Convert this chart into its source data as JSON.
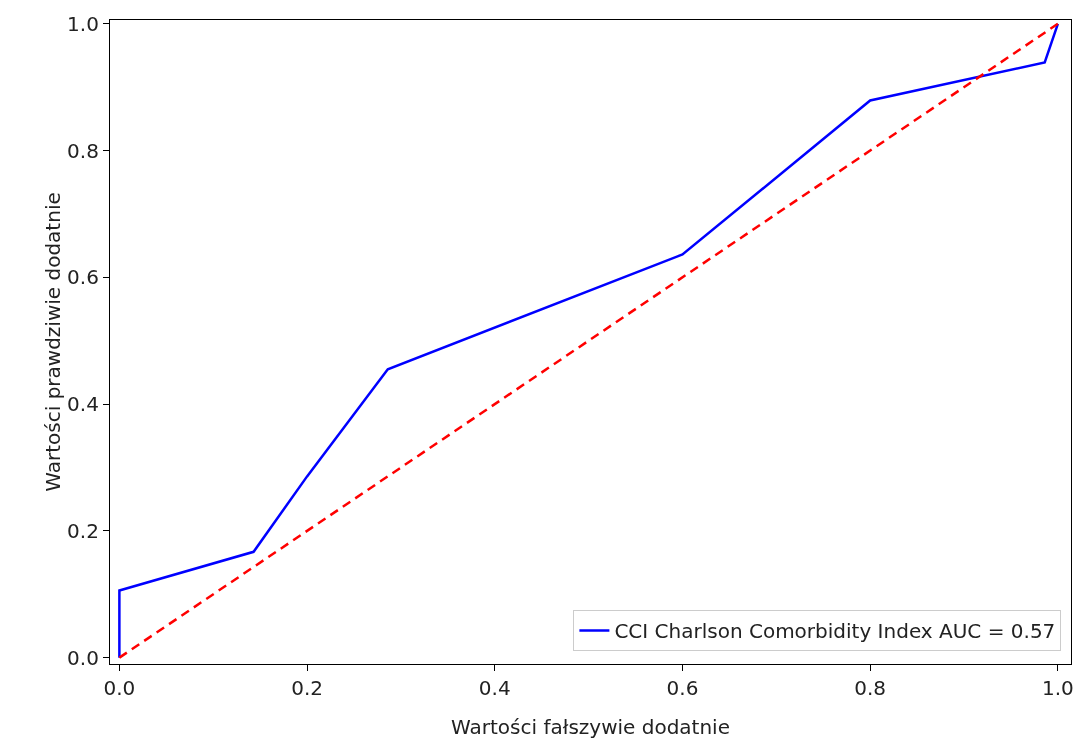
{
  "chart_data": {
    "type": "line",
    "xlabel": "Wartości fałszywie dodatnie",
    "ylabel": "Wartości prawdziwie dodatnie",
    "series": [
      {
        "name": "CCI Charlson Comorbidity Index AUC = 0.57",
        "color": "#0000ff",
        "line_style": "solid",
        "x": [
          0,
          0,
          0.143,
          0.2,
          0.286,
          0.6,
          0.8,
          0.986,
          1
        ],
        "values": [
          0,
          0.106,
          0.167,
          0.286,
          0.455,
          0.636,
          0.879,
          0.939,
          1
        ]
      },
      {
        "color": "#ff0000",
        "line_style": "dashed",
        "x": [
          0,
          1
        ],
        "values": [
          0,
          1
        ]
      }
    ],
    "xlim": [
      -0.01,
      1.014
    ],
    "ylim": [
      -0.01,
      1.006
    ],
    "xticks": [
      {
        "value": 0,
        "label": "0.0"
      },
      0.2,
      0.4,
      0.6,
      0.8,
      {
        "value": 1,
        "label": "1.0"
      }
    ],
    "yticks": [
      {
        "value": 0,
        "label": "0.0"
      },
      0.2,
      0.4,
      0.6,
      0.8,
      {
        "value": 1,
        "label": "1.0"
      }
    ],
    "grid": false,
    "legend": "bottom right",
    "marker": "none"
  }
}
